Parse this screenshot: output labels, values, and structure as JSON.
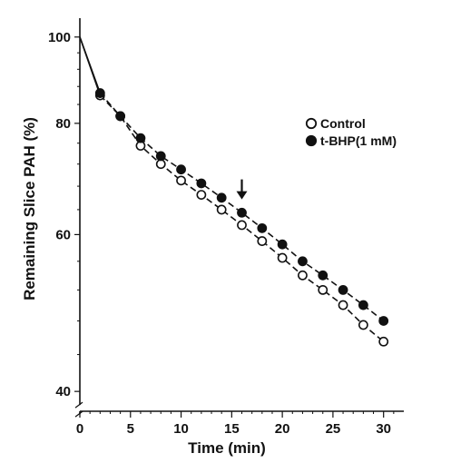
{
  "chart_data": {
    "type": "line",
    "title": "",
    "xlabel": "Time (min)",
    "ylabel": "Remaining Slice PAH (%)",
    "y_scale": "log",
    "xlim": [
      0,
      32
    ],
    "ylim": [
      38,
      105
    ],
    "x_ticks": [
      0,
      5,
      10,
      15,
      20,
      25,
      30
    ],
    "x_tick_labels": [
      "0",
      "5",
      "10",
      "15",
      "20",
      "25",
      "30"
    ],
    "y_ticks": [
      40,
      60,
      80,
      100
    ],
    "y_tick_labels": [
      "40",
      "60",
      "80",
      "100"
    ],
    "y_axis_break": true,
    "grid": false,
    "legend_position": "right",
    "annotations": [
      {
        "type": "arrow",
        "x": 16,
        "y": 64.5,
        "direction": "down"
      }
    ],
    "series": [
      {
        "name": "Control",
        "marker": "open-circle",
        "color": "#111111",
        "x": [
          0,
          2,
          4,
          6,
          8,
          10,
          12,
          14,
          16,
          18,
          20,
          22,
          24,
          26,
          28,
          30
        ],
        "y": [
          100,
          86,
          81.5,
          75.5,
          72,
          69,
          66.5,
          64,
          61.5,
          59,
          56.5,
          54,
          52,
          50,
          47.5,
          45.5
        ]
      },
      {
        "name": "t-BHP(1 mM)",
        "marker": "filled-circle",
        "color": "#111111",
        "x": [
          0,
          2,
          4,
          6,
          8,
          10,
          12,
          14,
          16,
          18,
          20,
          22,
          24,
          26,
          28,
          30
        ],
        "y": [
          100,
          86.5,
          81.5,
          77,
          73.5,
          71,
          68.5,
          66,
          63.5,
          61,
          58.5,
          56,
          54,
          52,
          50,
          48
        ]
      }
    ]
  }
}
